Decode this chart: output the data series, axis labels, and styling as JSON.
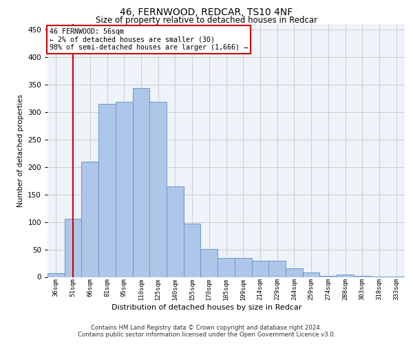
{
  "title1": "46, FERNWOOD, REDCAR, TS10 4NF",
  "title2": "Size of property relative to detached houses in Redcar",
  "xlabel": "Distribution of detached houses by size in Redcar",
  "ylabel": "Number of detached properties",
  "categories": [
    "36sqm",
    "51sqm",
    "66sqm",
    "81sqm",
    "95sqm",
    "110sqm",
    "125sqm",
    "140sqm",
    "155sqm",
    "170sqm",
    "185sqm",
    "199sqm",
    "214sqm",
    "229sqm",
    "244sqm",
    "259sqm",
    "274sqm",
    "288sqm",
    "303sqm",
    "318sqm",
    "333sqm"
  ],
  "values": [
    7,
    106,
    210,
    315,
    318,
    343,
    318,
    165,
    97,
    51,
    35,
    35,
    30,
    30,
    16,
    8,
    2,
    5,
    2,
    1,
    1
  ],
  "bar_color": "#aec6e8",
  "bar_edge_color": "#6699cc",
  "annotation_line1": "46 FERNWOOD: 56sqm",
  "annotation_line2": "← 2% of detached houses are smaller (30)",
  "annotation_line3": "98% of semi-detached houses are larger (1,666) →",
  "vline_x": 1,
  "vline_color": "#cc0000",
  "box_color": "#cc0000",
  "grid_color": "#cccccc",
  "bg_color": "#eef2f9",
  "ylim": [
    0,
    460
  ],
  "yticks": [
    0,
    50,
    100,
    150,
    200,
    250,
    300,
    350,
    400,
    450
  ],
  "footer1": "Contains HM Land Registry data © Crown copyright and database right 2024.",
  "footer2": "Contains public sector information licensed under the Open Government Licence v3.0."
}
